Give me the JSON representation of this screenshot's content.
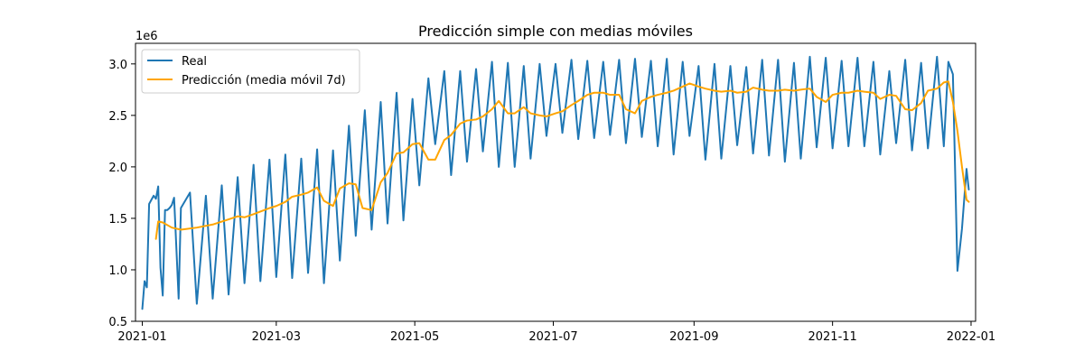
{
  "chart_data": {
    "type": "line",
    "title": "Predicción simple con medias móviles",
    "xlabel": "",
    "ylabel": "",
    "y_offset_label": "1e6",
    "x_range": [
      "2020-12-29",
      "2022-01-03"
    ],
    "ylim": [
      0.5,
      3.2
    ],
    "x_tick_labels": [
      "2021-01",
      "2021-03",
      "2021-05",
      "2021-07",
      "2021-09",
      "2021-11",
      "2022-01"
    ],
    "x_tick_dates": [
      "2021-01-01",
      "2021-03-01",
      "2021-05-01",
      "2021-07-01",
      "2021-09-01",
      "2021-11-01",
      "2022-01-01"
    ],
    "y_ticks": [
      0.5,
      1.0,
      1.5,
      2.0,
      2.5,
      3.0
    ],
    "y_tick_labels": [
      "0.5",
      "1.0",
      "1.5",
      "2.0",
      "2.5",
      "3.0"
    ],
    "grid": false,
    "legend_position": "top-left",
    "series": [
      {
        "name": "Real",
        "color": "#1f77b4",
        "x": [
          "2021-01-01",
          "2021-01-02",
          "2021-01-03",
          "2021-01-04",
          "2021-01-05",
          "2021-01-06",
          "2021-01-07",
          "2021-01-08",
          "2021-01-09",
          "2021-01-10",
          "2021-01-11",
          "2021-01-12",
          "2021-01-13",
          "2021-01-14",
          "2021-01-15",
          "2021-01-17",
          "2021-01-18",
          "2021-01-22",
          "2021-01-25",
          "2021-01-29",
          "2021-02-01",
          "2021-02-05",
          "2021-02-08",
          "2021-02-12",
          "2021-02-15",
          "2021-02-19",
          "2021-02-22",
          "2021-02-26",
          "2021-03-01",
          "2021-03-05",
          "2021-03-08",
          "2021-03-12",
          "2021-03-15",
          "2021-03-19",
          "2021-03-22",
          "2021-03-26",
          "2021-03-29",
          "2021-04-02",
          "2021-04-05",
          "2021-04-09",
          "2021-04-12",
          "2021-04-16",
          "2021-04-19",
          "2021-04-23",
          "2021-04-26",
          "2021-04-30",
          "2021-05-03",
          "2021-05-07",
          "2021-05-10",
          "2021-05-14",
          "2021-05-17",
          "2021-05-21",
          "2021-05-24",
          "2021-05-28",
          "2021-05-31",
          "2021-06-04",
          "2021-06-07",
          "2021-06-11",
          "2021-06-14",
          "2021-06-18",
          "2021-06-21",
          "2021-06-25",
          "2021-06-28",
          "2021-07-02",
          "2021-07-05",
          "2021-07-09",
          "2021-07-12",
          "2021-07-16",
          "2021-07-19",
          "2021-07-23",
          "2021-07-26",
          "2021-07-30",
          "2021-08-02",
          "2021-08-06",
          "2021-08-09",
          "2021-08-13",
          "2021-08-16",
          "2021-08-20",
          "2021-08-23",
          "2021-08-27",
          "2021-08-30",
          "2021-09-03",
          "2021-09-06",
          "2021-09-10",
          "2021-09-13",
          "2021-09-17",
          "2021-09-20",
          "2021-09-24",
          "2021-09-27",
          "2021-10-01",
          "2021-10-04",
          "2021-10-08",
          "2021-10-11",
          "2021-10-15",
          "2021-10-18",
          "2021-10-22",
          "2021-10-25",
          "2021-10-29",
          "2021-11-01",
          "2021-11-05",
          "2021-11-08",
          "2021-11-12",
          "2021-11-15",
          "2021-11-19",
          "2021-11-22",
          "2021-11-26",
          "2021-11-29",
          "2021-12-03",
          "2021-12-06",
          "2021-12-10",
          "2021-12-13",
          "2021-12-17",
          "2021-12-20",
          "2021-12-22",
          "2021-12-24",
          "2021-12-26",
          "2021-12-28",
          "2021-12-30",
          "2021-12-31"
        ],
        "values": [
          0.62,
          0.89,
          0.83,
          1.64,
          1.68,
          1.72,
          1.69,
          1.81,
          1.02,
          0.75,
          1.58,
          1.58,
          1.6,
          1.63,
          1.7,
          0.72,
          1.6,
          1.75,
          0.67,
          1.72,
          0.72,
          1.82,
          0.76,
          1.9,
          0.87,
          2.02,
          0.89,
          2.07,
          0.93,
          2.12,
          0.92,
          2.08,
          0.97,
          2.17,
          0.87,
          2.16,
          1.09,
          2.4,
          1.33,
          2.55,
          1.39,
          2.63,
          1.45,
          2.72,
          1.48,
          2.66,
          1.82,
          2.86,
          2.22,
          2.93,
          1.92,
          2.93,
          2.05,
          2.95,
          2.15,
          3.02,
          2.0,
          3.01,
          2.0,
          2.98,
          2.08,
          3.0,
          2.3,
          3.0,
          2.33,
          3.04,
          2.27,
          3.03,
          2.28,
          3.02,
          2.31,
          3.04,
          2.23,
          3.05,
          2.29,
          3.03,
          2.2,
          3.05,
          2.12,
          3.02,
          2.3,
          2.98,
          2.07,
          3.0,
          2.08,
          2.98,
          2.21,
          2.97,
          2.13,
          3.04,
          2.11,
          3.04,
          2.05,
          3.01,
          2.08,
          3.07,
          2.19,
          3.06,
          2.18,
          3.03,
          2.2,
          3.06,
          2.2,
          3.02,
          2.12,
          2.93,
          2.23,
          3.04,
          2.16,
          3.01,
          2.18,
          3.07,
          2.2,
          3.02,
          2.9,
          0.99,
          1.4,
          1.98,
          1.78
        ]
      },
      {
        "name": "Predicción (media móvil 7d)",
        "color": "#ffa500",
        "x": [
          "2021-01-07",
          "2021-01-08",
          "2021-01-10",
          "2021-01-14",
          "2021-01-18",
          "2021-01-25",
          "2021-02-01",
          "2021-02-08",
          "2021-02-12",
          "2021-02-15",
          "2021-02-19",
          "2021-02-26",
          "2021-03-01",
          "2021-03-05",
          "2021-03-08",
          "2021-03-12",
          "2021-03-15",
          "2021-03-19",
          "2021-03-22",
          "2021-03-26",
          "2021-03-29",
          "2021-04-02",
          "2021-04-05",
          "2021-04-08",
          "2021-04-12",
          "2021-04-16",
          "2021-04-19",
          "2021-04-23",
          "2021-04-26",
          "2021-04-30",
          "2021-05-03",
          "2021-05-07",
          "2021-05-10",
          "2021-05-14",
          "2021-05-17",
          "2021-05-21",
          "2021-05-24",
          "2021-05-28",
          "2021-05-31",
          "2021-06-04",
          "2021-06-07",
          "2021-06-11",
          "2021-06-14",
          "2021-06-18",
          "2021-06-21",
          "2021-06-25",
          "2021-06-28",
          "2021-07-02",
          "2021-07-05",
          "2021-07-09",
          "2021-07-12",
          "2021-07-16",
          "2021-07-19",
          "2021-07-23",
          "2021-07-26",
          "2021-07-30",
          "2021-08-02",
          "2021-08-06",
          "2021-08-09",
          "2021-08-13",
          "2021-08-16",
          "2021-08-20",
          "2021-08-23",
          "2021-08-27",
          "2021-08-30",
          "2021-09-03",
          "2021-09-06",
          "2021-09-10",
          "2021-09-13",
          "2021-09-17",
          "2021-09-20",
          "2021-09-24",
          "2021-09-27",
          "2021-10-01",
          "2021-10-04",
          "2021-10-08",
          "2021-10-11",
          "2021-10-15",
          "2021-10-18",
          "2021-10-22",
          "2021-10-25",
          "2021-10-29",
          "2021-11-01",
          "2021-11-05",
          "2021-11-08",
          "2021-11-12",
          "2021-11-15",
          "2021-11-19",
          "2021-11-22",
          "2021-11-26",
          "2021-11-29",
          "2021-12-03",
          "2021-12-06",
          "2021-12-10",
          "2021-12-13",
          "2021-12-17",
          "2021-12-20",
          "2021-12-22",
          "2021-12-24",
          "2021-12-26",
          "2021-12-28",
          "2021-12-30",
          "2021-12-31"
        ],
        "values": [
          1.3,
          1.47,
          1.46,
          1.41,
          1.39,
          1.41,
          1.44,
          1.49,
          1.52,
          1.51,
          1.54,
          1.6,
          1.62,
          1.66,
          1.71,
          1.73,
          1.75,
          1.8,
          1.67,
          1.62,
          1.79,
          1.84,
          1.83,
          1.6,
          1.58,
          1.85,
          1.94,
          2.13,
          2.14,
          2.22,
          2.23,
          2.07,
          2.07,
          2.26,
          2.31,
          2.42,
          2.45,
          2.46,
          2.49,
          2.56,
          2.64,
          2.52,
          2.52,
          2.58,
          2.52,
          2.5,
          2.49,
          2.52,
          2.54,
          2.6,
          2.64,
          2.7,
          2.72,
          2.72,
          2.7,
          2.7,
          2.56,
          2.52,
          2.64,
          2.68,
          2.7,
          2.72,
          2.74,
          2.78,
          2.81,
          2.78,
          2.76,
          2.74,
          2.73,
          2.74,
          2.72,
          2.73,
          2.77,
          2.75,
          2.74,
          2.74,
          2.75,
          2.74,
          2.75,
          2.76,
          2.68,
          2.63,
          2.7,
          2.72,
          2.72,
          2.74,
          2.73,
          2.72,
          2.66,
          2.7,
          2.69,
          2.56,
          2.55,
          2.62,
          2.74,
          2.76,
          2.82,
          2.83,
          2.63,
          2.35,
          2.0,
          1.68,
          1.66
        ]
      }
    ]
  }
}
